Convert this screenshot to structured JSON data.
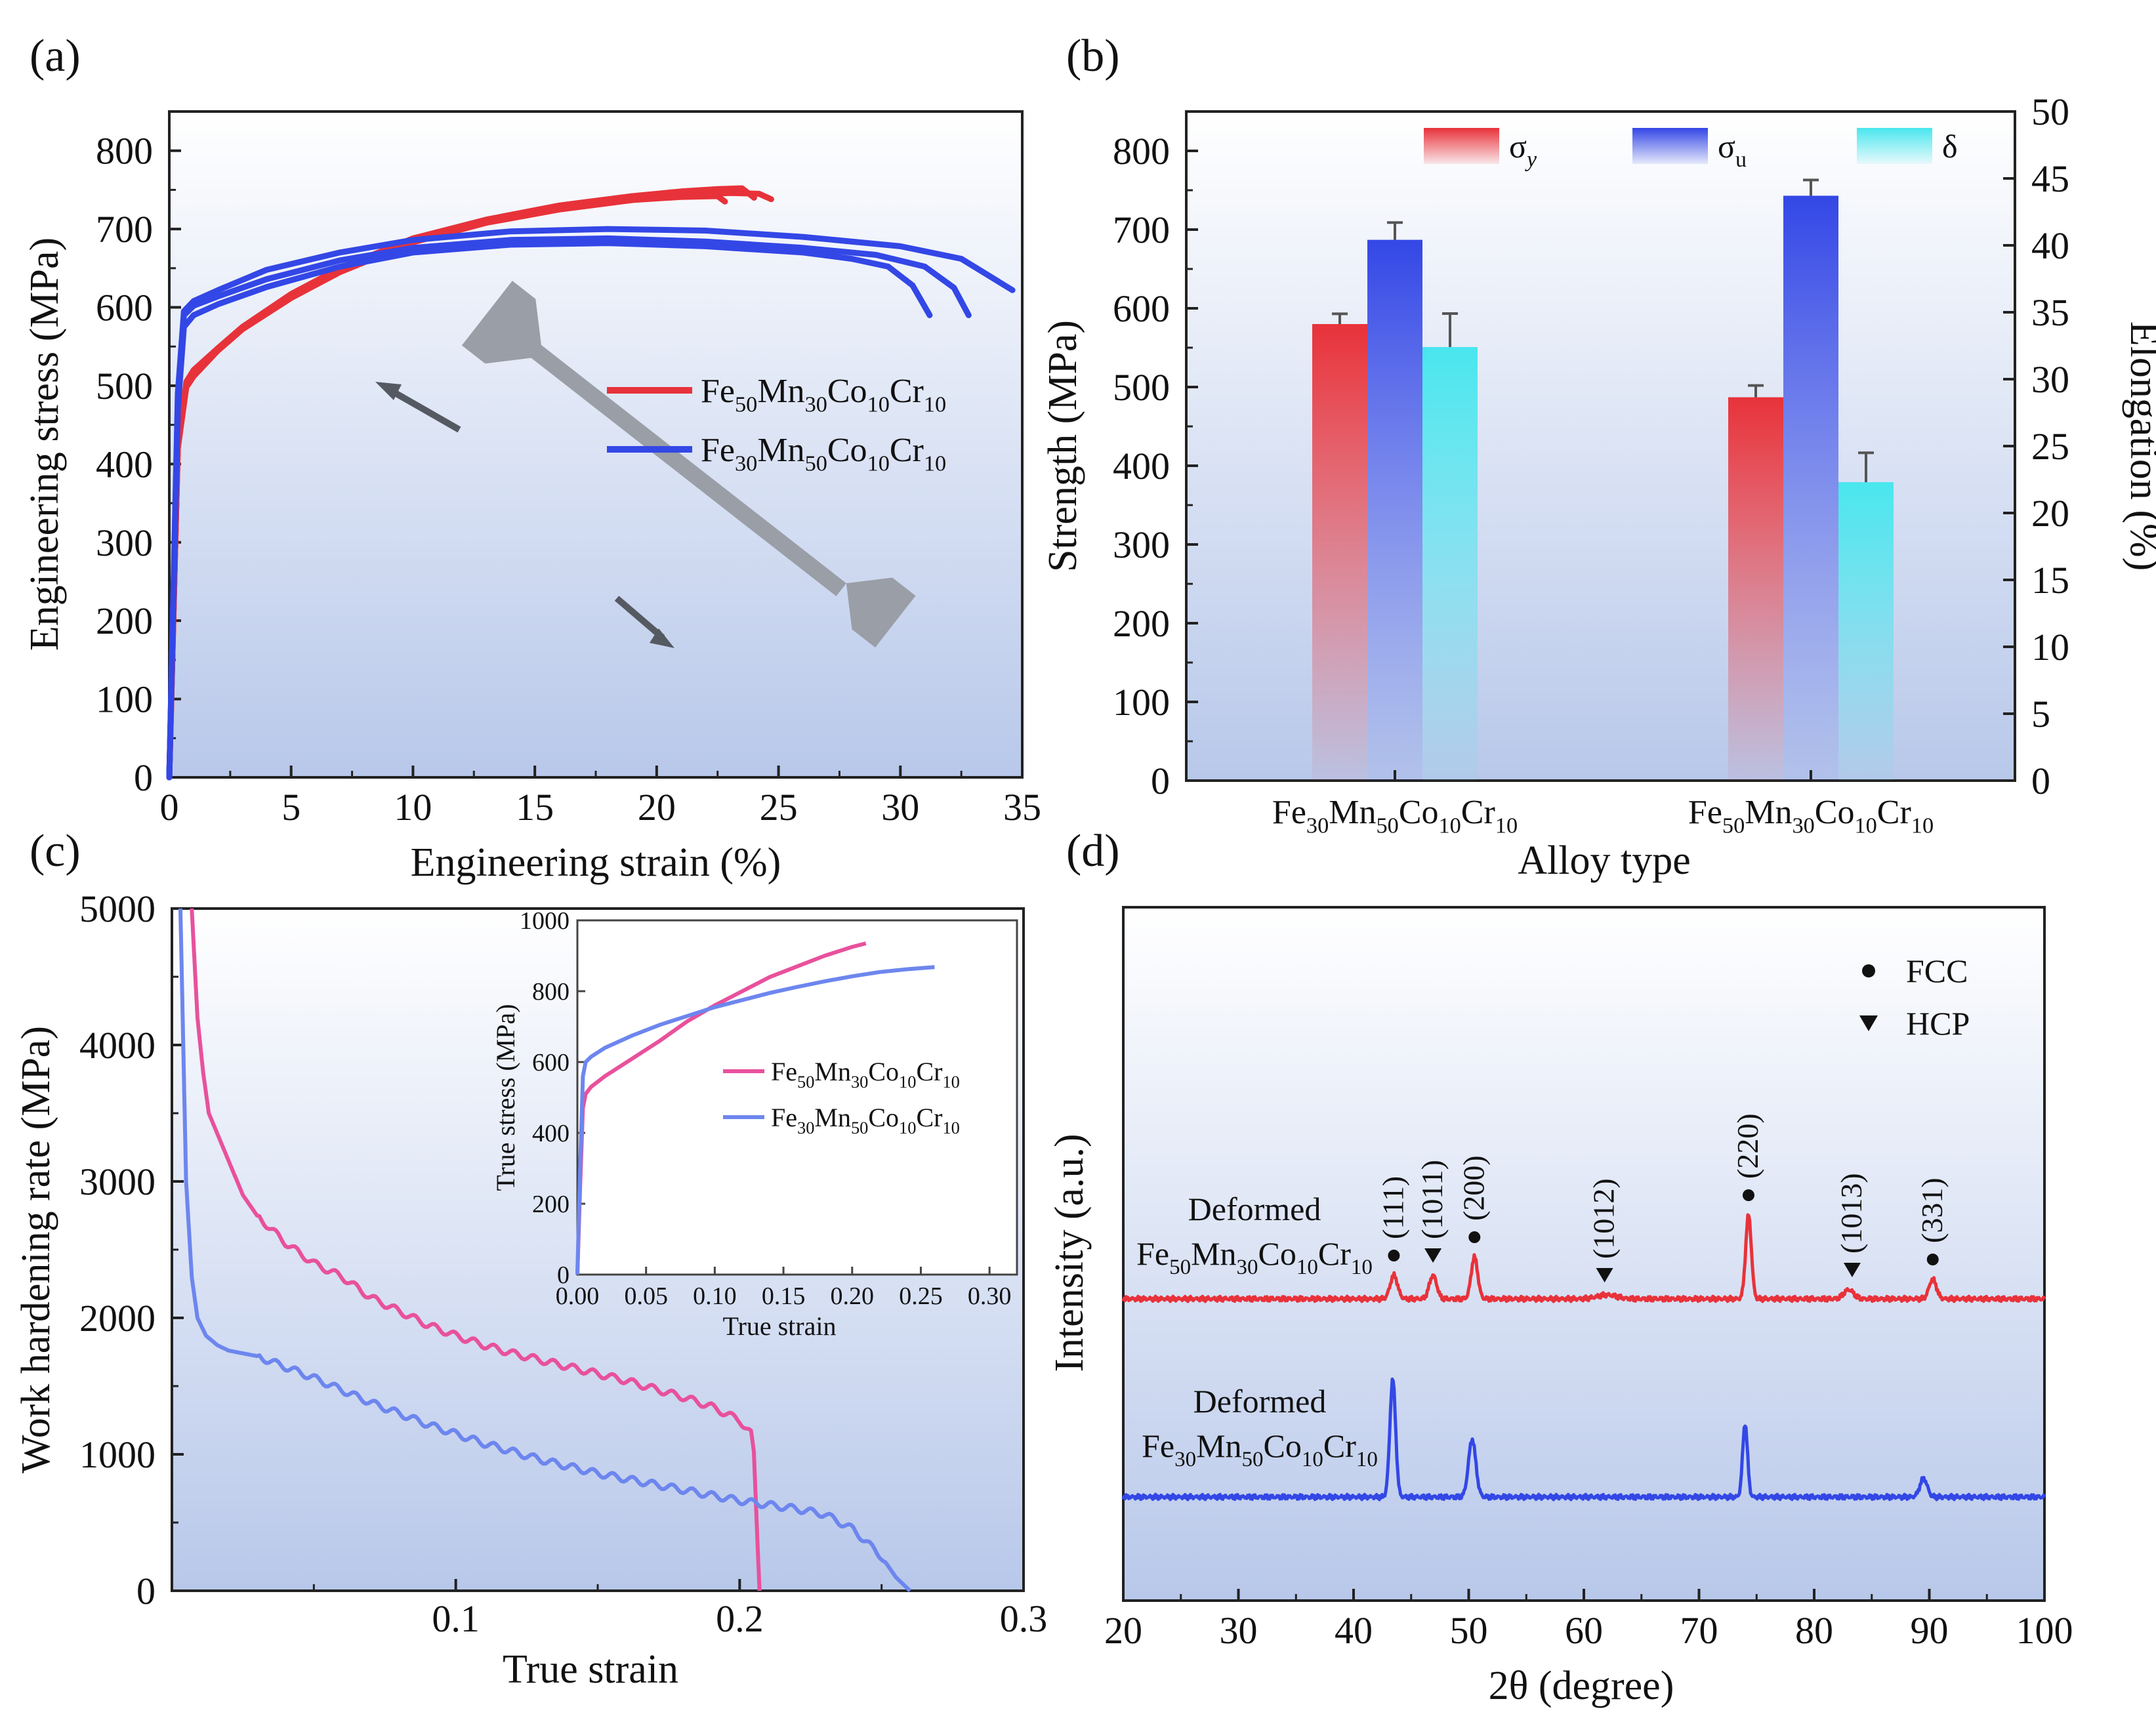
{
  "colors": {
    "red": "#e8323a",
    "blue": "#3347e6",
    "cyan": "#49e6ee",
    "pink": "#e8519c",
    "lightblue": "#6d86ee",
    "specimen": "#9a9ea6",
    "arrow": "#555a62",
    "axis": "#222222",
    "panel_bg_top": "#ffffff",
    "panel_bg_bottom": "#b8c8ea"
  },
  "chart_data": [
    {
      "id": "a",
      "panel_label": "(a)",
      "type": "line",
      "xlabel": "Engineering  strain (%)",
      "ylabel": "Engineering stress (MPa)",
      "xlim": [
        0,
        35
      ],
      "ylim": [
        0,
        850
      ],
      "xticks": [
        "0",
        "5",
        "10",
        "15",
        "20",
        "25",
        "30",
        "35"
      ],
      "yticks": [
        "0",
        "100",
        "200",
        "300",
        "400",
        "500",
        "600",
        "700",
        "800"
      ],
      "legend": [
        {
          "label_parts": [
            "Fe",
            "50",
            "Mn",
            "30",
            "Co",
            "10",
            "Cr",
            "10"
          ],
          "color": "red"
        },
        {
          "label_parts": [
            "Fe",
            "30",
            "Mn",
            "50",
            "Co",
            "10",
            "Cr",
            "10"
          ],
          "color": "blue"
        }
      ],
      "series": [
        {
          "color": "red",
          "x": [
            0,
            0.35,
            0.7,
            1,
            2,
            3,
            5,
            7,
            10,
            13,
            16,
            19,
            21,
            22.5,
            23.5,
            24
          ],
          "y": [
            0,
            420,
            505,
            520,
            548,
            575,
            617,
            650,
            688,
            712,
            730,
            742,
            748,
            751,
            752,
            740
          ]
        },
        {
          "color": "red",
          "x": [
            0,
            0.35,
            0.7,
            1,
            2,
            3,
            5,
            7,
            10,
            13,
            16,
            19,
            21,
            23,
            24.2,
            24.7
          ],
          "y": [
            0,
            420,
            498,
            512,
            545,
            572,
            612,
            645,
            683,
            708,
            725,
            737,
            743,
            746,
            745,
            738
          ]
        },
        {
          "color": "red",
          "x": [
            0,
            0.35,
            0.7,
            1,
            2,
            3,
            5,
            7,
            10,
            13,
            16,
            19,
            21,
            22.5,
            22.8
          ],
          "y": [
            0,
            420,
            500,
            515,
            545,
            572,
            612,
            645,
            683,
            708,
            725,
            737,
            741,
            742,
            735
          ]
        },
        {
          "color": "blue",
          "x": [
            0,
            0.35,
            0.6,
            1,
            2,
            4,
            7,
            10,
            14,
            18,
            22,
            26,
            28,
            29.5,
            30.5,
            31.2
          ],
          "y": [
            0,
            470,
            575,
            590,
            604,
            626,
            652,
            670,
            680,
            682,
            678,
            670,
            662,
            652,
            628,
            590
          ]
        },
        {
          "color": "blue",
          "x": [
            0,
            0.35,
            0.6,
            1,
            2,
            4,
            7,
            10,
            14,
            18,
            22,
            26,
            29,
            31,
            32.2,
            32.8
          ],
          "y": [
            0,
            480,
            590,
            602,
            614,
            636,
            660,
            676,
            686,
            688,
            684,
            676,
            667,
            652,
            625,
            590
          ]
        },
        {
          "color": "blue",
          "x": [
            0,
            0.35,
            0.6,
            1,
            2,
            4,
            7,
            10,
            14,
            18,
            22,
            26,
            30,
            32.5,
            34.6
          ],
          "y": [
            0,
            490,
            595,
            608,
            622,
            648,
            670,
            686,
            697,
            700,
            698,
            690,
            678,
            662,
            622
          ]
        }
      ]
    },
    {
      "id": "b",
      "panel_label": "(b)",
      "type": "bar",
      "xlabel": "Alloy type",
      "ylabel": "Strength (MPa)",
      "y2label": "Elongation (%)",
      "ylim": [
        0,
        850
      ],
      "y2lim": [
        0,
        50
      ],
      "yticks": [
        "0",
        "100",
        "200",
        "300",
        "400",
        "500",
        "600",
        "700",
        "800"
      ],
      "y2ticks": [
        "0",
        "5",
        "10",
        "15",
        "20",
        "25",
        "30",
        "35",
        "40",
        "45",
        "50"
      ],
      "categories": [
        {
          "label_parts": [
            "Fe",
            "30",
            "Mn",
            "50",
            "Co",
            "10",
            "Cr",
            "10"
          ]
        },
        {
          "label_parts": [
            "Fe",
            "50",
            "Mn",
            "30",
            "Co",
            "10",
            "Cr",
            "10"
          ]
        }
      ],
      "legend": [
        {
          "symbol": "σ",
          "sub": "y",
          "sub_italic": true,
          "color": "red"
        },
        {
          "symbol": "σ",
          "sub": "u",
          "sub_italic": false,
          "color": "blue"
        },
        {
          "symbol": "δ",
          "sub": "",
          "sub_italic": false,
          "color": "cyan"
        }
      ],
      "series": [
        {
          "key": "sigma_y",
          "color": "red",
          "axis": "left",
          "values": [
            580,
            487
          ],
          "errors": [
            13,
            15
          ]
        },
        {
          "key": "sigma_u",
          "color": "blue",
          "axis": "left",
          "values": [
            687,
            743
          ],
          "errors": [
            22,
            20
          ]
        },
        {
          "key": "delta",
          "color": "cyan",
          "axis": "right",
          "values": [
            32.4,
            22.3
          ],
          "errors": [
            2.5,
            2.2
          ]
        }
      ]
    },
    {
      "id": "c",
      "panel_label": "(c)",
      "type": "line",
      "xlabel": "True strain",
      "ylabel": "Work hardening rate (MPa)",
      "xlim": [
        0,
        0.3
      ],
      "ylim": [
        0,
        5000
      ],
      "xticks": [
        "0.1",
        "0.2",
        "0.3"
      ],
      "yticks": [
        "0",
        "1000",
        "2000",
        "3000",
        "4000",
        "5000"
      ],
      "series": [
        {
          "color": "pink",
          "x": [
            0.007,
            0.008,
            0.009,
            0.011,
            0.013,
            0.016,
            0.02,
            0.025,
            0.03,
            0.04,
            0.05,
            0.06,
            0.07,
            0.08,
            0.09,
            0.1,
            0.11,
            0.12,
            0.13,
            0.14,
            0.15,
            0.16,
            0.17,
            0.18,
            0.19,
            0.2,
            0.204,
            0.205,
            0.206,
            0.207
          ],
          "y": [
            5000,
            4600,
            4200,
            3800,
            3500,
            3350,
            3150,
            2900,
            2750,
            2550,
            2400,
            2300,
            2150,
            2050,
            1950,
            1870,
            1800,
            1740,
            1690,
            1640,
            1590,
            1540,
            1480,
            1420,
            1350,
            1250,
            1150,
            1000,
            500,
            0
          ]
        },
        {
          "color": "lightblue",
          "x": [
            0.003,
            0.004,
            0.005,
            0.007,
            0.009,
            0.012,
            0.016,
            0.02,
            0.03,
            0.04,
            0.05,
            0.06,
            0.07,
            0.08,
            0.09,
            0.1,
            0.11,
            0.12,
            0.13,
            0.14,
            0.15,
            0.16,
            0.17,
            0.18,
            0.19,
            0.2,
            0.21,
            0.22,
            0.23,
            0.24,
            0.25,
            0.255,
            0.26
          ],
          "y": [
            5000,
            4000,
            3000,
            2300,
            2000,
            1870,
            1800,
            1760,
            1720,
            1640,
            1560,
            1470,
            1380,
            1300,
            1220,
            1150,
            1080,
            1020,
            960,
            910,
            860,
            820,
            780,
            740,
            700,
            660,
            630,
            600,
            560,
            450,
            250,
            100,
            0
          ]
        }
      ],
      "inset": {
        "type": "line",
        "xlabel": "True strain",
        "ylabel": "True stress (MPa)",
        "xlim": [
          0,
          0.32
        ],
        "ylim": [
          0,
          1000
        ],
        "xticks": [
          "0.00",
          "0.05",
          "0.10",
          "0.15",
          "0.20",
          "0.25",
          "0.30"
        ],
        "yticks": [
          "0",
          "200",
          "400",
          "600",
          "800",
          "1000"
        ],
        "legend": [
          {
            "label_parts": [
              "Fe",
              "50",
              "Mn",
              "30",
              "Co",
              "10",
              "Cr",
              "10"
            ],
            "color": "pink"
          },
          {
            "label_parts": [
              "Fe",
              "30",
              "Mn",
              "50",
              "Co",
              "10",
              "Cr",
              "10"
            ],
            "color": "lightblue"
          }
        ],
        "series": [
          {
            "color": "pink",
            "x": [
              0,
              0.002,
              0.004,
              0.006,
              0.01,
              0.02,
              0.04,
              0.06,
              0.08,
              0.1,
              0.12,
              0.14,
              0.16,
              0.18,
              0.2,
              0.21
            ],
            "y": [
              0,
              250,
              470,
              510,
              530,
              560,
              610,
              660,
              715,
              760,
              800,
              840,
              870,
              900,
              925,
              935
            ]
          },
          {
            "color": "lightblue",
            "x": [
              0,
              0.002,
              0.004,
              0.006,
              0.01,
              0.02,
              0.04,
              0.06,
              0.08,
              0.1,
              0.12,
              0.14,
              0.16,
              0.18,
              0.2,
              0.22,
              0.24,
              0.26
            ],
            "y": [
              0,
              300,
              560,
              600,
              615,
              640,
              675,
              705,
              730,
              755,
              775,
              795,
              812,
              828,
              842,
              854,
              862,
              868
            ]
          }
        ]
      }
    },
    {
      "id": "d",
      "panel_label": "(d)",
      "type": "line",
      "xlabel": "2θ (degree)",
      "ylabel": "Intensity (a.u.)",
      "xlim": [
        20,
        100
      ],
      "xticks": [
        "20",
        "30",
        "40",
        "50",
        "60",
        "70",
        "80",
        "90",
        "100"
      ],
      "legend": [
        {
          "marker": "circle",
          "label": "FCC"
        },
        {
          "marker": "triangle",
          "label": "HCP"
        }
      ],
      "series": [
        {
          "color": "red",
          "label_line1": "Deformed",
          "label_parts": [
            "Fe",
            "50",
            "Mn",
            "30",
            "Co",
            "10",
            "Cr",
            "10"
          ],
          "baseline": 0.0,
          "peaks": [
            {
              "x": 43.5,
              "height": 0.9,
              "width": 0.45
            },
            {
              "x": 46.9,
              "height": 0.9,
              "width": 0.45
            },
            {
              "x": 50.5,
              "height": 1.6,
              "width": 0.4
            },
            {
              "x": 62.0,
              "height": 0.15,
              "width": 1.2
            },
            {
              "x": 74.3,
              "height": 3.2,
              "width": 0.35
            },
            {
              "x": 83.0,
              "height": 0.35,
              "width": 0.6
            },
            {
              "x": 90.3,
              "height": 0.75,
              "width": 0.45
            }
          ]
        },
        {
          "color": "blue",
          "label_line1": "Deformed",
          "label_parts": [
            "Fe",
            "30",
            "Mn",
            "50",
            "Co",
            "10",
            "Cr",
            "10"
          ],
          "baseline": 0.0,
          "peaks": [
            {
              "x": 43.4,
              "height": 4.5,
              "width": 0.35
            },
            {
              "x": 50.3,
              "height": 2.2,
              "width": 0.45
            },
            {
              "x": 74.0,
              "height": 2.8,
              "width": 0.3
            },
            {
              "x": 89.5,
              "height": 0.7,
              "width": 0.45
            }
          ]
        }
      ],
      "peak_labels": [
        {
          "x": 43.5,
          "text": "(111)",
          "marker": "circle"
        },
        {
          "x": 46.9,
          "text": "(1011)",
          "marker": "triangle",
          "bar_over": "1"
        },
        {
          "x": 50.5,
          "text": "(200)",
          "marker": "circle"
        },
        {
          "x": 61.8,
          "text": "(1012)",
          "marker": "triangle",
          "bar_over": "1"
        },
        {
          "x": 74.3,
          "text": "(220)",
          "marker": "circle"
        },
        {
          "x": 83.3,
          "text": "(1013)",
          "marker": "triangle",
          "bar_over": "1"
        },
        {
          "x": 90.3,
          "text": "(331)",
          "marker": "circle"
        }
      ]
    }
  ]
}
